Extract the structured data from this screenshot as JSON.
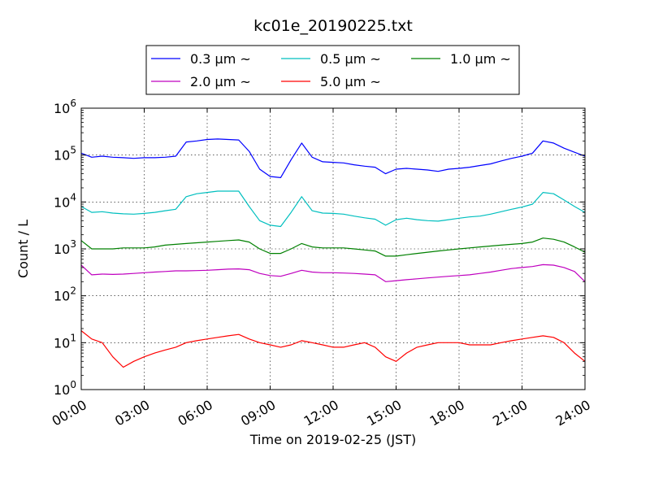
{
  "chart_data": {
    "type": "line",
    "title": "kc01e_20190225.txt",
    "xlabel": "Time on 2019-02-25 (JST)",
    "ylabel": "Count / L",
    "y_scale": "log",
    "ylim": [
      1,
      1000000
    ],
    "xlim": [
      "00:00",
      "24:00"
    ],
    "x_ticks": [
      "00:00",
      "03:00",
      "06:00",
      "09:00",
      "12:00",
      "15:00",
      "18:00",
      "21:00",
      "24:00"
    ],
    "y_ticks": [
      {
        "base": "10",
        "exp": "0"
      },
      {
        "base": "10",
        "exp": "1"
      },
      {
        "base": "10",
        "exp": "2"
      },
      {
        "base": "10",
        "exp": "3"
      },
      {
        "base": "10",
        "exp": "4"
      },
      {
        "base": "10",
        "exp": "5"
      },
      {
        "base": "10",
        "exp": "6"
      }
    ],
    "grid": true,
    "legend_position": "top-center",
    "x": [
      "00:00",
      "00:30",
      "01:00",
      "01:30",
      "02:00",
      "02:30",
      "03:00",
      "03:30",
      "04:00",
      "04:30",
      "05:00",
      "05:30",
      "06:00",
      "06:30",
      "07:00",
      "07:30",
      "08:00",
      "08:30",
      "09:00",
      "09:30",
      "10:00",
      "10:30",
      "11:00",
      "11:30",
      "12:00",
      "12:30",
      "13:00",
      "13:30",
      "14:00",
      "14:30",
      "15:00",
      "15:30",
      "16:00",
      "16:30",
      "17:00",
      "17:30",
      "18:00",
      "18:30",
      "19:00",
      "19:30",
      "20:00",
      "20:30",
      "21:00",
      "21:30",
      "22:00",
      "22:30",
      "23:00",
      "23:30",
      "24:00"
    ],
    "series": [
      {
        "name": "0.3 μm ~",
        "color": "#0000ff",
        "values": [
          110000,
          90000,
          95000,
          90000,
          88000,
          85000,
          88000,
          88000,
          90000,
          95000,
          190000,
          200000,
          215000,
          220000,
          215000,
          210000,
          120000,
          50000,
          35000,
          33000,
          80000,
          180000,
          90000,
          72000,
          70000,
          68000,
          62000,
          58000,
          55000,
          40000,
          50000,
          52000,
          50000,
          48000,
          45000,
          50000,
          52000,
          55000,
          60000,
          65000,
          75000,
          85000,
          95000,
          110000,
          200000,
          180000,
          140000,
          115000,
          95000
        ]
      },
      {
        "name": "0.5 μm ~",
        "color": "#00bfbf",
        "values": [
          8000,
          6000,
          6200,
          5800,
          5600,
          5500,
          5700,
          6000,
          6500,
          7000,
          13000,
          15000,
          16000,
          17000,
          17000,
          17000,
          8000,
          4000,
          3200,
          3000,
          6000,
          13000,
          6500,
          5800,
          5700,
          5500,
          5000,
          4600,
          4300,
          3200,
          4200,
          4500,
          4200,
          4000,
          3900,
          4200,
          4500,
          4800,
          5000,
          5500,
          6200,
          7000,
          7800,
          9000,
          16000,
          15000,
          11000,
          8000,
          6000
        ]
      },
      {
        "name": "1.0 μm ~",
        "color": "#008000",
        "values": [
          1500,
          1000,
          1000,
          1000,
          1050,
          1050,
          1050,
          1100,
          1200,
          1250,
          1300,
          1350,
          1400,
          1450,
          1500,
          1550,
          1400,
          1000,
          800,
          800,
          1000,
          1300,
          1100,
          1050,
          1050,
          1050,
          1000,
          950,
          900,
          700,
          700,
          750,
          800,
          850,
          900,
          950,
          1000,
          1050,
          1100,
          1150,
          1200,
          1250,
          1300,
          1400,
          1700,
          1600,
          1400,
          1100,
          850
        ]
      },
      {
        "name": "2.0 μm ~",
        "color": "#bf00bf",
        "values": [
          450,
          280,
          290,
          285,
          290,
          300,
          310,
          320,
          330,
          340,
          340,
          345,
          350,
          360,
          370,
          375,
          360,
          300,
          270,
          260,
          300,
          350,
          320,
          310,
          310,
          305,
          300,
          290,
          280,
          200,
          210,
          220,
          230,
          240,
          250,
          260,
          270,
          280,
          300,
          320,
          350,
          380,
          400,
          420,
          460,
          450,
          400,
          330,
          200
        ]
      },
      {
        "name": "5.0 μm ~",
        "color": "#ff0000",
        "values": [
          18,
          12,
          10,
          5,
          3,
          4,
          5,
          6,
          7,
          8,
          10,
          11,
          12,
          13,
          14,
          15,
          12,
          10,
          9,
          8,
          9,
          11,
          10,
          9,
          8,
          8,
          9,
          10,
          8,
          5,
          4,
          6,
          8,
          9,
          10,
          10,
          10,
          9,
          9,
          9,
          10,
          11,
          12,
          13,
          14,
          13,
          10,
          6,
          4
        ]
      }
    ]
  }
}
